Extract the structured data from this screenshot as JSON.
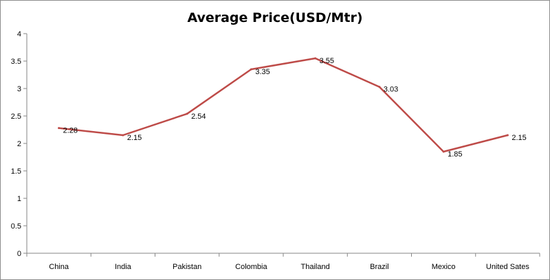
{
  "chart_data": {
    "type": "line",
    "title": "Average Price(USD/Mtr)",
    "xlabel": "",
    "ylabel": "",
    "categories": [
      "China",
      "India",
      "Pakistan",
      "Colombia",
      "Thailand",
      "Brazil",
      "Mexico",
      "United Sates"
    ],
    "series": [
      {
        "values": [
          2.28,
          2.15,
          2.54,
          3.35,
          3.55,
          3.03,
          1.85,
          2.15
        ],
        "color": "#be4b48"
      }
    ],
    "data_labels": [
      "2.28",
      "2.15",
      "2.54",
      "3.35",
      "3.55",
      "3.03",
      "1.85",
      "2.15"
    ],
    "ylim": [
      0,
      4
    ],
    "yticks": [
      "0",
      "0.5",
      "1",
      "1.5",
      "2",
      "2.5",
      "3",
      "3.5",
      "4"
    ],
    "grid": false,
    "legend": "none"
  }
}
